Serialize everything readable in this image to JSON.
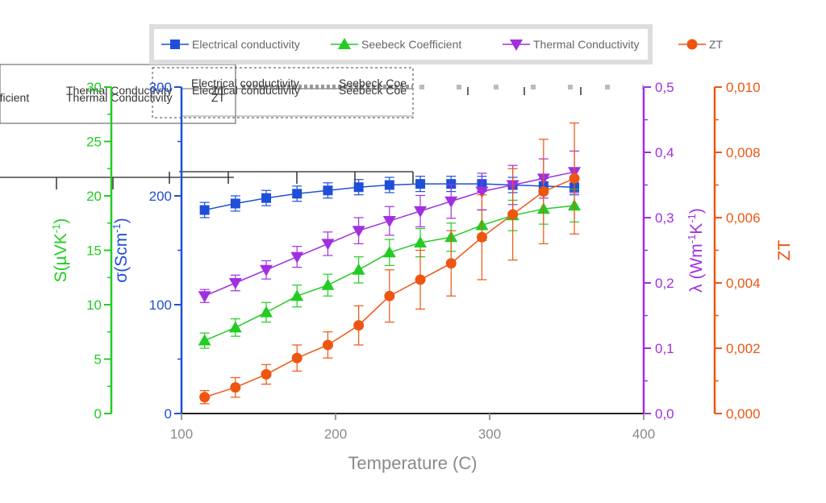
{
  "chart_data": {
    "type": "line",
    "xlabel": "Temperature (C)",
    "x_ticks": [
      100,
      200,
      300,
      400
    ],
    "xlim": [
      100,
      400
    ],
    "x": [
      115,
      135,
      155,
      175,
      195,
      215,
      235,
      255,
      275,
      295,
      315,
      335,
      355
    ],
    "series": [
      {
        "name": "Electrical conductivity",
        "axis": "sigma",
        "color": "#1f4fd8",
        "marker": "square",
        "values": [
          187,
          193,
          198,
          202,
          205,
          208,
          210,
          211,
          211,
          211,
          210,
          209,
          208
        ],
        "errors": [
          7,
          7,
          7,
          7,
          7,
          7,
          7,
          7,
          7,
          7,
          7,
          7,
          7
        ]
      },
      {
        "name": "Seebeck Coefficient",
        "axis": "S",
        "color": "#22cc22",
        "marker": "triangle-up",
        "values": [
          6.7,
          7.9,
          9.3,
          10.8,
          11.8,
          13.2,
          14.8,
          15.7,
          16.2,
          17.3,
          18.2,
          18.8,
          19.1
        ],
        "errors": [
          0.7,
          0.8,
          0.9,
          1.0,
          1.0,
          1.2,
          1.2,
          1.3,
          1.3,
          1.4,
          1.4,
          1.4,
          1.5
        ]
      },
      {
        "name": "Thermal Conductivity",
        "axis": "lambda",
        "color": "#a12fe0",
        "marker": "triangle-down",
        "values": [
          0.18,
          0.2,
          0.22,
          0.24,
          0.26,
          0.28,
          0.295,
          0.31,
          0.325,
          0.34,
          0.35,
          0.36,
          0.37
        ],
        "errors": [
          0.01,
          0.012,
          0.014,
          0.016,
          0.018,
          0.02,
          0.022,
          0.024,
          0.026,
          0.028,
          0.03,
          0.03,
          0.032
        ]
      },
      {
        "name": "ZT",
        "axis": "ZT",
        "color": "#ee5511",
        "marker": "circle",
        "values": [
          0.0005,
          0.0008,
          0.0012,
          0.0017,
          0.0021,
          0.0027,
          0.0036,
          0.0041,
          0.0046,
          0.0054,
          0.0061,
          0.0068,
          0.0072
        ],
        "errors": [
          0.0002,
          0.0003,
          0.0003,
          0.0004,
          0.0004,
          0.0006,
          0.0008,
          0.0009,
          0.001,
          0.0013,
          0.0014,
          0.0016,
          0.0017
        ]
      }
    ],
    "axes": {
      "S": {
        "label": "S(µVK",
        "sup": "-1",
        "after": ")",
        "color": "#22cc22",
        "ylim": [
          0,
          30
        ],
        "ticks": [
          0,
          5,
          10,
          15,
          20,
          25,
          30
        ],
        "tick_labels": [
          "0",
          "5",
          "10",
          "15",
          "20",
          "25",
          "30"
        ]
      },
      "sigma": {
        "label": "σ(Scm",
        "sup": "-1",
        "after": ")",
        "color": "#1f4fd8",
        "ylim": [
          0,
          300
        ],
        "ticks": [
          0,
          100,
          200,
          300
        ],
        "tick_labels": [
          "0",
          "100",
          "200",
          "300"
        ]
      },
      "lambda": {
        "label": "λ (Wm",
        "sup": "-1",
        "mid": "K",
        "sup2": "-1",
        "after": ")",
        "color": "#a12fe0",
        "ylim": [
          0,
          0.5
        ],
        "ticks": [
          0,
          0.1,
          0.2,
          0.3,
          0.4,
          0.5
        ],
        "tick_labels": [
          "0,0",
          "0,1",
          "0,2",
          "0,3",
          "0,4",
          "0,5"
        ]
      },
      "ZT": {
        "label": "ZT",
        "color": "#ee5511",
        "ylim": [
          0,
          0.01
        ],
        "ticks": [
          0,
          0.002,
          0.004,
          0.006,
          0.008,
          0.01
        ],
        "tick_labels": [
          "0,000",
          "0,002",
          "0,004",
          "0,006",
          "0,008",
          "0,010"
        ]
      }
    },
    "legend": {
      "placement": "top-center",
      "items": [
        "Electrical conductivity",
        "Seebeck Coefficient",
        "Thermal Conductivity",
        "ZT"
      ]
    },
    "ghost_text": [
      "Electrical conductivity",
      "Seebeck Coe",
      "Electrical conductivity",
      "Seebeck Coe",
      "fficient",
      "Thermal Conductivity",
      "ZT",
      "Thermal Conductivity",
      "ZT"
    ]
  }
}
